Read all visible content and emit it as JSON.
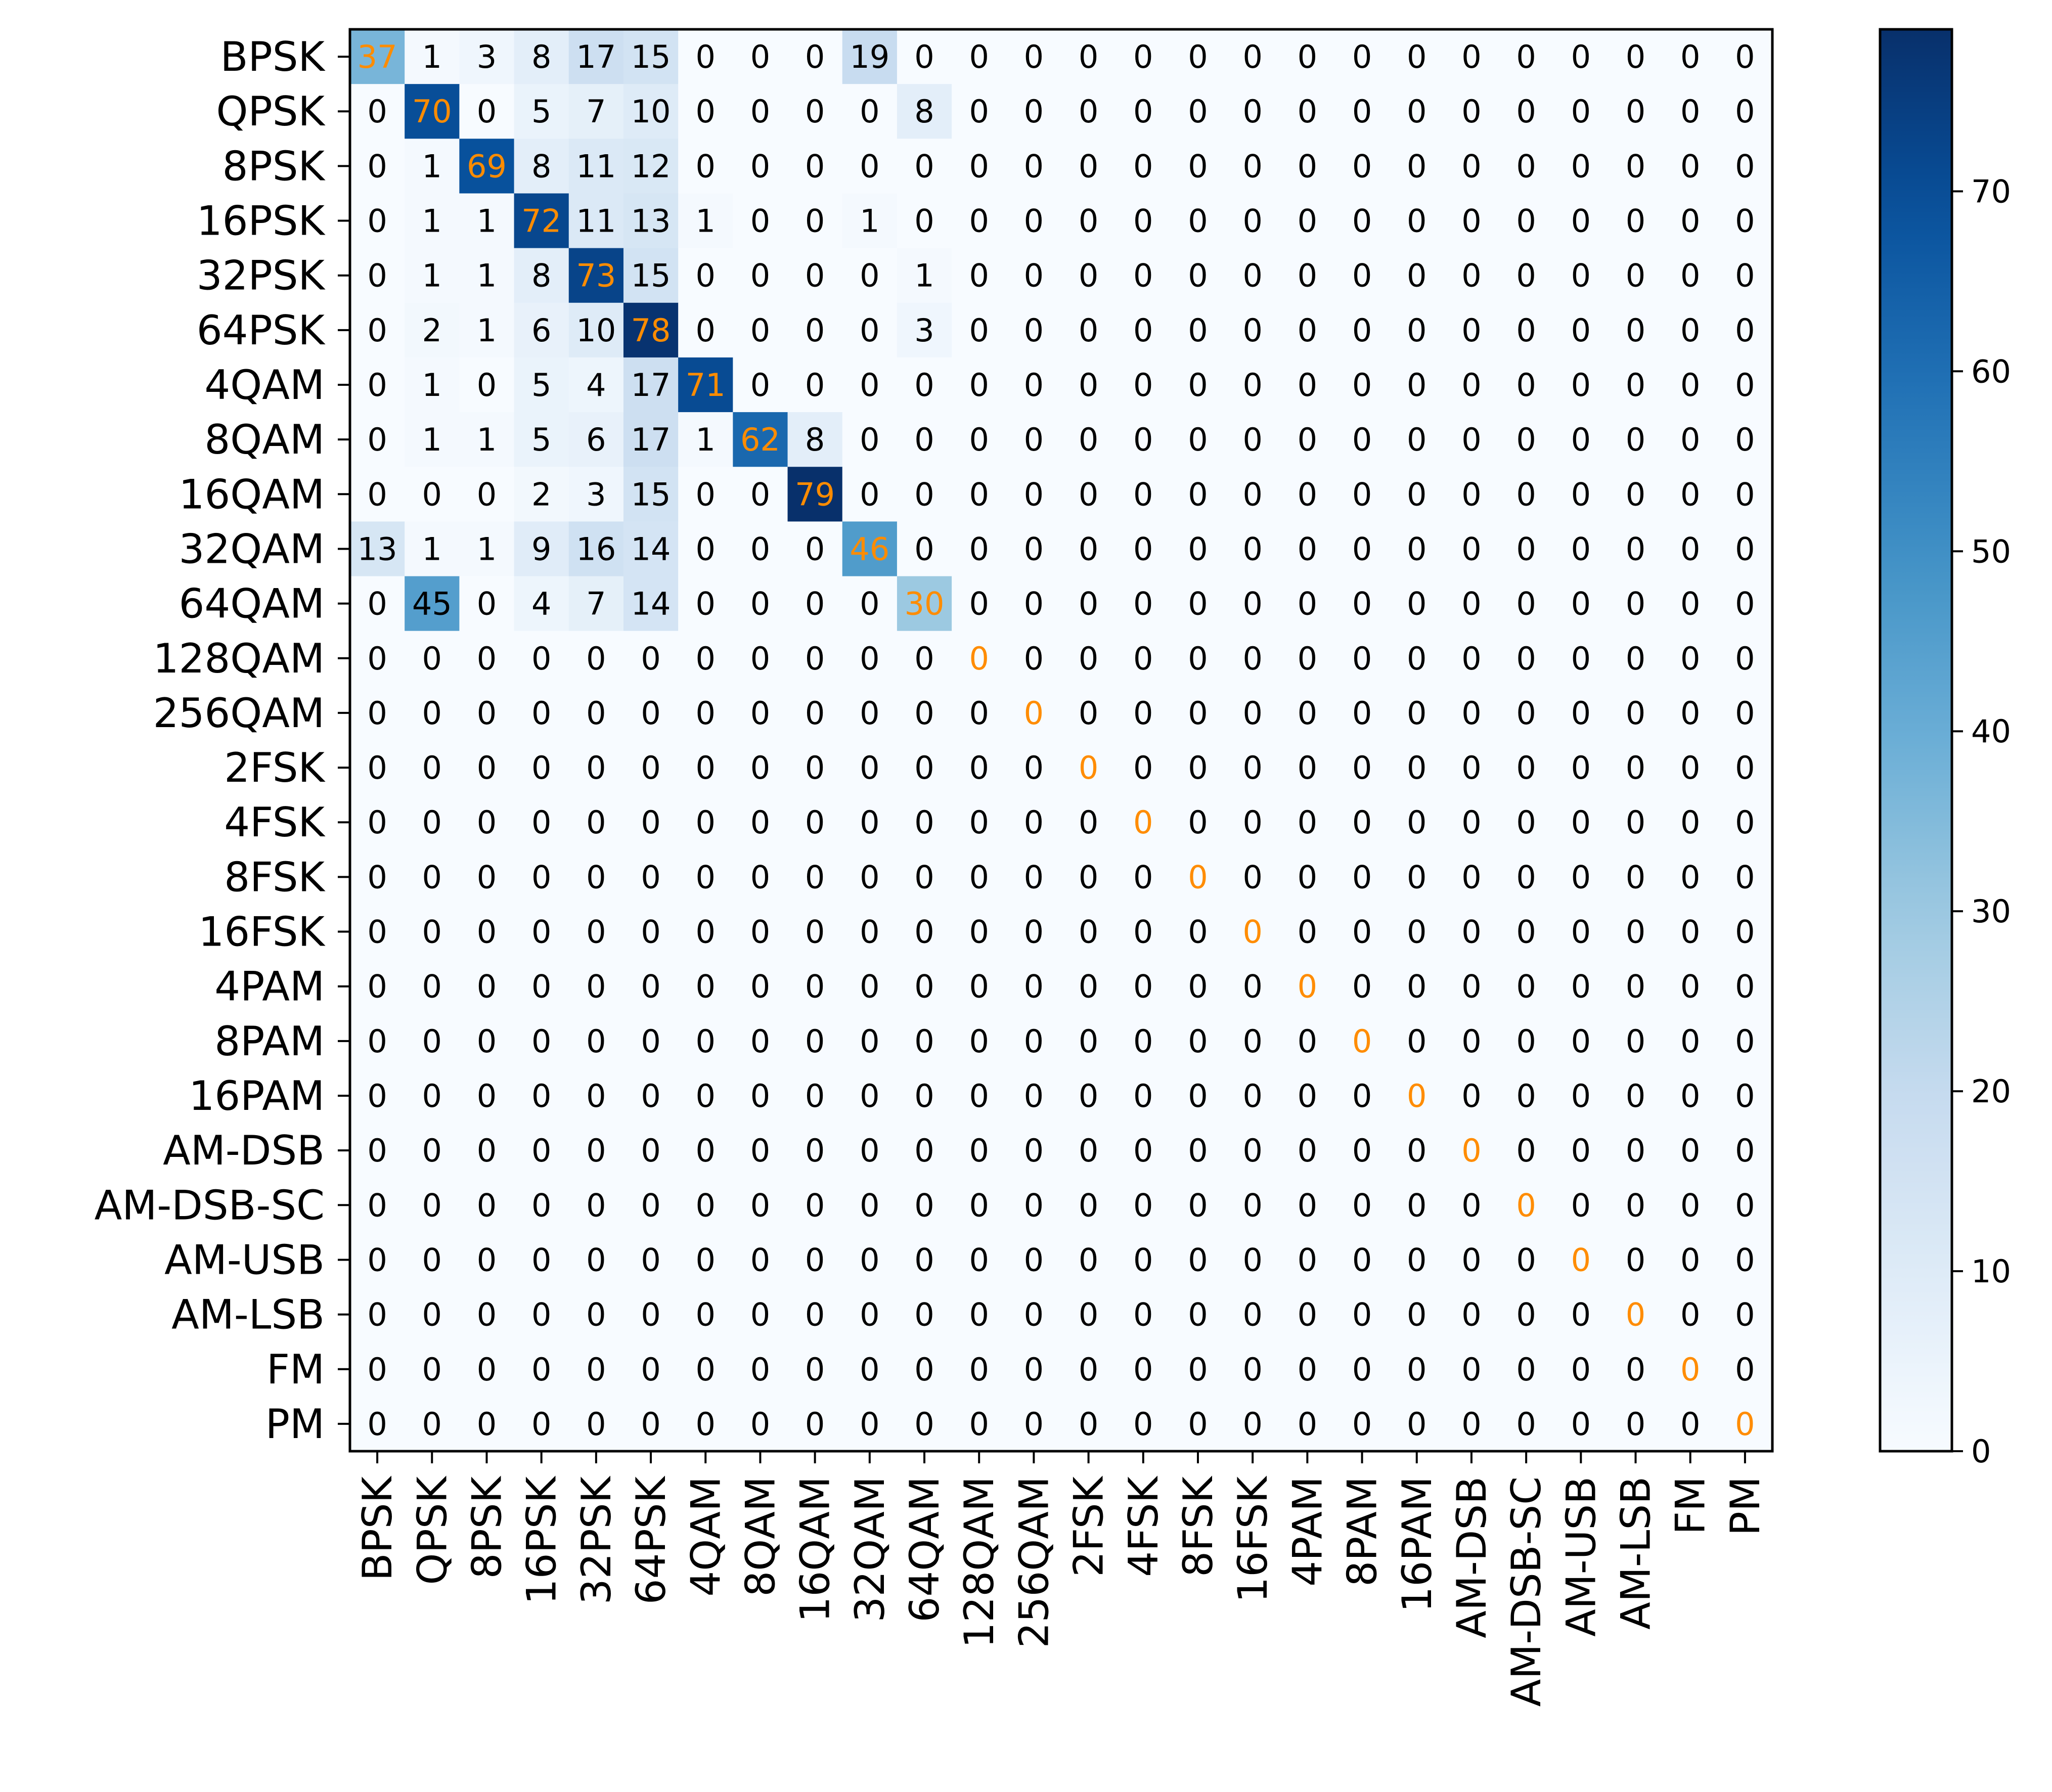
{
  "chart_data": {
    "type": "heatmap",
    "title": "",
    "xlabel": "",
    "ylabel": "",
    "labels": [
      "BPSK",
      "QPSK",
      "8PSK",
      "16PSK",
      "32PSK",
      "64PSK",
      "4QAM",
      "8QAM",
      "16QAM",
      "32QAM",
      "64QAM",
      "128QAM",
      "256QAM",
      "2FSK",
      "4FSK",
      "8FSK",
      "16FSK",
      "4PAM",
      "8PAM",
      "16PAM",
      "AM-DSB",
      "AM-DSB-SC",
      "AM-USB",
      "AM-LSB",
      "FM",
      "PM"
    ],
    "matrix": [
      [
        37,
        1,
        3,
        8,
        17,
        15,
        0,
        0,
        0,
        19,
        0,
        0,
        0,
        0,
        0,
        0,
        0,
        0,
        0,
        0,
        0,
        0,
        0,
        0,
        0,
        0
      ],
      [
        0,
        70,
        0,
        5,
        7,
        10,
        0,
        0,
        0,
        0,
        8,
        0,
        0,
        0,
        0,
        0,
        0,
        0,
        0,
        0,
        0,
        0,
        0,
        0,
        0,
        0
      ],
      [
        0,
        1,
        69,
        8,
        11,
        12,
        0,
        0,
        0,
        0,
        0,
        0,
        0,
        0,
        0,
        0,
        0,
        0,
        0,
        0,
        0,
        0,
        0,
        0,
        0,
        0
      ],
      [
        0,
        1,
        1,
        72,
        11,
        13,
        1,
        0,
        0,
        1,
        0,
        0,
        0,
        0,
        0,
        0,
        0,
        0,
        0,
        0,
        0,
        0,
        0,
        0,
        0,
        0
      ],
      [
        0,
        1,
        1,
        8,
        73,
        15,
        0,
        0,
        0,
        0,
        1,
        0,
        0,
        0,
        0,
        0,
        0,
        0,
        0,
        0,
        0,
        0,
        0,
        0,
        0,
        0
      ],
      [
        0,
        2,
        1,
        6,
        10,
        78,
        0,
        0,
        0,
        0,
        3,
        0,
        0,
        0,
        0,
        0,
        0,
        0,
        0,
        0,
        0,
        0,
        0,
        0,
        0,
        0
      ],
      [
        0,
        1,
        0,
        5,
        4,
        17,
        71,
        0,
        0,
        0,
        0,
        0,
        0,
        0,
        0,
        0,
        0,
        0,
        0,
        0,
        0,
        0,
        0,
        0,
        0,
        0
      ],
      [
        0,
        1,
        1,
        5,
        6,
        17,
        1,
        62,
        8,
        0,
        0,
        0,
        0,
        0,
        0,
        0,
        0,
        0,
        0,
        0,
        0,
        0,
        0,
        0,
        0,
        0
      ],
      [
        0,
        0,
        0,
        2,
        3,
        15,
        0,
        0,
        79,
        0,
        0,
        0,
        0,
        0,
        0,
        0,
        0,
        0,
        0,
        0,
        0,
        0,
        0,
        0,
        0,
        0
      ],
      [
        13,
        1,
        1,
        9,
        16,
        14,
        0,
        0,
        0,
        46,
        0,
        0,
        0,
        0,
        0,
        0,
        0,
        0,
        0,
        0,
        0,
        0,
        0,
        0,
        0,
        0
      ],
      [
        0,
        45,
        0,
        4,
        7,
        14,
        0,
        0,
        0,
        0,
        30,
        0,
        0,
        0,
        0,
        0,
        0,
        0,
        0,
        0,
        0,
        0,
        0,
        0,
        0,
        0
      ],
      [
        0,
        0,
        0,
        0,
        0,
        0,
        0,
        0,
        0,
        0,
        0,
        0,
        0,
        0,
        0,
        0,
        0,
        0,
        0,
        0,
        0,
        0,
        0,
        0,
        0,
        0
      ],
      [
        0,
        0,
        0,
        0,
        0,
        0,
        0,
        0,
        0,
        0,
        0,
        0,
        0,
        0,
        0,
        0,
        0,
        0,
        0,
        0,
        0,
        0,
        0,
        0,
        0,
        0
      ],
      [
        0,
        0,
        0,
        0,
        0,
        0,
        0,
        0,
        0,
        0,
        0,
        0,
        0,
        0,
        0,
        0,
        0,
        0,
        0,
        0,
        0,
        0,
        0,
        0,
        0,
        0
      ],
      [
        0,
        0,
        0,
        0,
        0,
        0,
        0,
        0,
        0,
        0,
        0,
        0,
        0,
        0,
        0,
        0,
        0,
        0,
        0,
        0,
        0,
        0,
        0,
        0,
        0,
        0
      ],
      [
        0,
        0,
        0,
        0,
        0,
        0,
        0,
        0,
        0,
        0,
        0,
        0,
        0,
        0,
        0,
        0,
        0,
        0,
        0,
        0,
        0,
        0,
        0,
        0,
        0,
        0
      ],
      [
        0,
        0,
        0,
        0,
        0,
        0,
        0,
        0,
        0,
        0,
        0,
        0,
        0,
        0,
        0,
        0,
        0,
        0,
        0,
        0,
        0,
        0,
        0,
        0,
        0,
        0
      ],
      [
        0,
        0,
        0,
        0,
        0,
        0,
        0,
        0,
        0,
        0,
        0,
        0,
        0,
        0,
        0,
        0,
        0,
        0,
        0,
        0,
        0,
        0,
        0,
        0,
        0,
        0
      ],
      [
        0,
        0,
        0,
        0,
        0,
        0,
        0,
        0,
        0,
        0,
        0,
        0,
        0,
        0,
        0,
        0,
        0,
        0,
        0,
        0,
        0,
        0,
        0,
        0,
        0,
        0
      ],
      [
        0,
        0,
        0,
        0,
        0,
        0,
        0,
        0,
        0,
        0,
        0,
        0,
        0,
        0,
        0,
        0,
        0,
        0,
        0,
        0,
        0,
        0,
        0,
        0,
        0,
        0
      ],
      [
        0,
        0,
        0,
        0,
        0,
        0,
        0,
        0,
        0,
        0,
        0,
        0,
        0,
        0,
        0,
        0,
        0,
        0,
        0,
        0,
        0,
        0,
        0,
        0,
        0,
        0
      ],
      [
        0,
        0,
        0,
        0,
        0,
        0,
        0,
        0,
        0,
        0,
        0,
        0,
        0,
        0,
        0,
        0,
        0,
        0,
        0,
        0,
        0,
        0,
        0,
        0,
        0,
        0
      ],
      [
        0,
        0,
        0,
        0,
        0,
        0,
        0,
        0,
        0,
        0,
        0,
        0,
        0,
        0,
        0,
        0,
        0,
        0,
        0,
        0,
        0,
        0,
        0,
        0,
        0,
        0
      ],
      [
        0,
        0,
        0,
        0,
        0,
        0,
        0,
        0,
        0,
        0,
        0,
        0,
        0,
        0,
        0,
        0,
        0,
        0,
        0,
        0,
        0,
        0,
        0,
        0,
        0,
        0
      ],
      [
        0,
        0,
        0,
        0,
        0,
        0,
        0,
        0,
        0,
        0,
        0,
        0,
        0,
        0,
        0,
        0,
        0,
        0,
        0,
        0,
        0,
        0,
        0,
        0,
        0,
        0
      ],
      [
        0,
        0,
        0,
        0,
        0,
        0,
        0,
        0,
        0,
        0,
        0,
        0,
        0,
        0,
        0,
        0,
        0,
        0,
        0,
        0,
        0,
        0,
        0,
        0,
        0,
        0
      ]
    ],
    "colorbar": {
      "range": [
        0,
        79
      ],
      "ticks": [
        0,
        10,
        20,
        30,
        40,
        50,
        60,
        70
      ],
      "colormap": "Blues"
    },
    "diagonal_text_color": "#ff8c00",
    "offdiagonal_text_color": "#000000",
    "legend": "colorbar-right",
    "grid": false
  }
}
